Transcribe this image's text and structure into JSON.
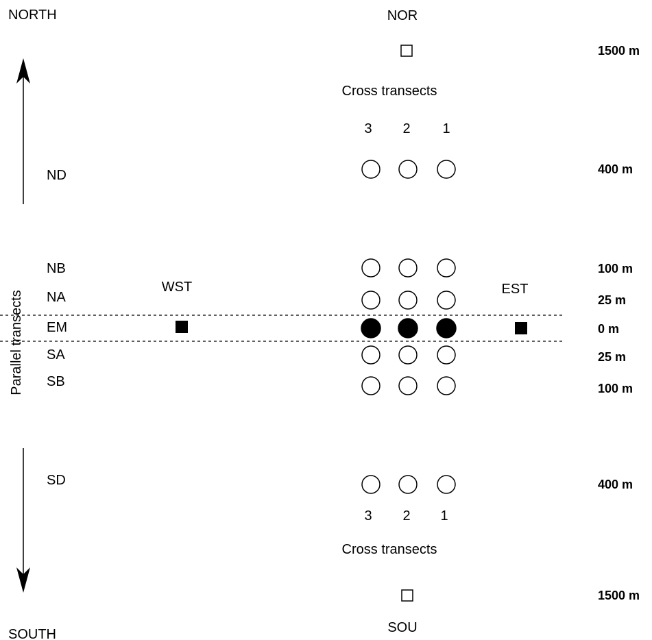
{
  "compass": {
    "north": "NORTH",
    "south": "SOUTH"
  },
  "side_label": "Parallel transects",
  "stations": {
    "north": "NOR",
    "south": "SOU",
    "west": "WST",
    "east": "EST"
  },
  "cross_transects": {
    "title": "Cross transects",
    "numbers": [
      "3",
      "2",
      "1"
    ]
  },
  "rows": [
    {
      "id": "ND",
      "label": "ND",
      "distance": "400 m",
      "fill": "open"
    },
    {
      "id": "NB",
      "label": "NB",
      "distance": "100 m",
      "fill": "open"
    },
    {
      "id": "NA",
      "label": "NA",
      "distance": "25 m",
      "fill": "open"
    },
    {
      "id": "EM",
      "label": "EM",
      "distance": "0 m",
      "fill": "solid"
    },
    {
      "id": "SA",
      "label": "SA",
      "distance": "25 m",
      "fill": "open"
    },
    {
      "id": "SB",
      "label": "SB",
      "distance": "100 m",
      "fill": "open"
    },
    {
      "id": "SD",
      "label": "SD",
      "distance": "400 m",
      "fill": "open"
    }
  ],
  "reference_distance": "1500 m",
  "colors": {
    "ink": "#000000",
    "background": "#ffffff"
  }
}
